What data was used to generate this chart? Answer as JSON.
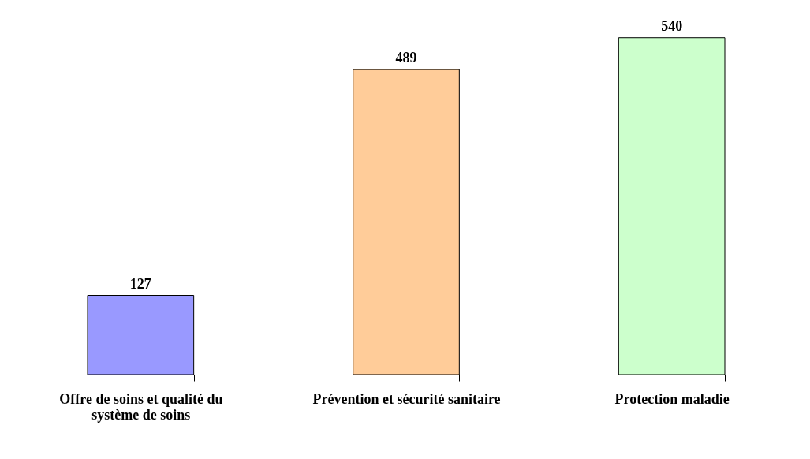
{
  "chart_data": {
    "type": "bar",
    "categories": [
      "Offre de soins et qualité du système de soins",
      "Prévention et sécurité sanitaire",
      "Protection maladie"
    ],
    "values": [
      127,
      489,
      540
    ],
    "colors": [
      "#9999ff",
      "#ffcc99",
      "#ccffcc"
    ],
    "data_labels": true
  }
}
